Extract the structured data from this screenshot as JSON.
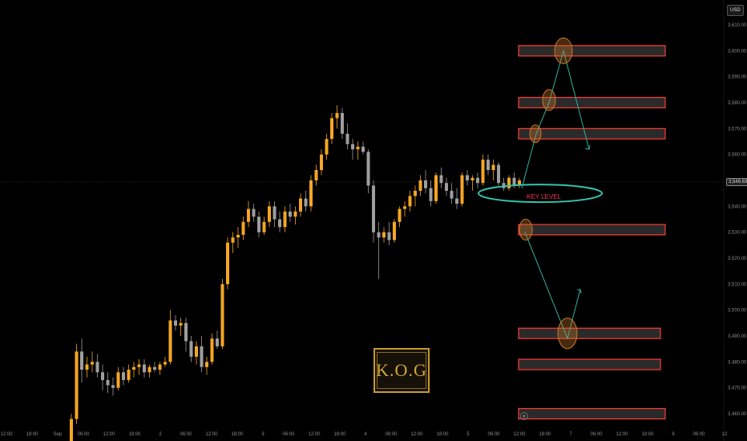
{
  "currency": "USD",
  "current_price": "3,549.83",
  "logo_text": "K.O.G",
  "key_level_label": "KEY LEVEL",
  "colors": {
    "background": "#000000",
    "bull_candle": "#f5a623",
    "bear_candle": "#9e9e9e",
    "zone_fill": "#2a2a2a",
    "zone_border": "#ff3b30",
    "arrow": "#2bb3a0",
    "circle": "#c8782a",
    "key_level_ellipse": "#34c3ad"
  },
  "chart_data": {
    "type": "candlestick",
    "title": "",
    "xlabel": "",
    "ylabel": "USD",
    "ylim": [
      3455,
      3615
    ],
    "grid": false,
    "x_ticks": [
      "12:00",
      "18:00",
      "Sep",
      "06:00",
      "12:00",
      "18:00",
      "2",
      "06:00",
      "12:00",
      "18:00",
      "3",
      "06:00",
      "12:00",
      "18:00",
      "4",
      "06:00",
      "12:00",
      "18:00",
      "5",
      "06:00",
      "12:00",
      "18:00",
      "7",
      "06:00",
      "12:00",
      "18:00",
      "9",
      "06:00",
      "12"
    ],
    "y_ticks": [
      "3,460.00",
      "3,470.00",
      "3,480.00",
      "3,490.00",
      "3,500.00",
      "3,510.00",
      "3,520.00",
      "3,530.00",
      "3,540.00",
      "3,550.00",
      "3,560.00",
      "3,570.00",
      "3,580.00",
      "3,590.00",
      "3,600.00",
      "3,610.00"
    ],
    "y_tick_values": [
      3460,
      3470,
      3480,
      3490,
      3500,
      3510,
      3520,
      3530,
      3540,
      3550,
      3560,
      3570,
      3580,
      3590,
      3600,
      3610
    ],
    "candles": [
      [
        3449,
        3460,
        3448,
        3458
      ],
      [
        3458,
        3487,
        3456,
        3484
      ],
      [
        3484,
        3489,
        3472,
        3477
      ],
      [
        3477,
        3482,
        3474,
        3479
      ],
      [
        3479,
        3484,
        3476,
        3480
      ],
      [
        3480,
        3483,
        3474,
        3476
      ],
      [
        3476,
        3479,
        3469,
        3473
      ],
      [
        3473,
        3476,
        3468,
        3471
      ],
      [
        3471,
        3474,
        3467,
        3470
      ],
      [
        3470,
        3478,
        3469,
        3476
      ],
      [
        3476,
        3478,
        3471,
        3473
      ],
      [
        3473,
        3479,
        3472,
        3477
      ],
      [
        3477,
        3480,
        3474,
        3478
      ],
      [
        3478,
        3481,
        3475,
        3479
      ],
      [
        3479,
        3481,
        3474,
        3476
      ],
      [
        3476,
        3479,
        3474,
        3478
      ],
      [
        3478,
        3480,
        3476,
        3477
      ],
      [
        3477,
        3480,
        3475,
        3479
      ],
      [
        3479,
        3482,
        3478,
        3480
      ],
      [
        3480,
        3500,
        3479,
        3496
      ],
      [
        3496,
        3498,
        3492,
        3494
      ],
      [
        3494,
        3497,
        3490,
        3495
      ],
      [
        3495,
        3497,
        3484,
        3488
      ],
      [
        3488,
        3490,
        3480,
        3482
      ],
      [
        3482,
        3488,
        3479,
        3486
      ],
      [
        3486,
        3490,
        3476,
        3478
      ],
      [
        3478,
        3482,
        3475,
        3480
      ],
      [
        3480,
        3491,
        3479,
        3489
      ],
      [
        3489,
        3492,
        3485,
        3486
      ],
      [
        3486,
        3512,
        3485,
        3510
      ],
      [
        3510,
        3528,
        3508,
        3526
      ],
      [
        3526,
        3530,
        3522,
        3528
      ],
      [
        3528,
        3532,
        3524,
        3529
      ],
      [
        3529,
        3536,
        3527,
        3534
      ],
      [
        3534,
        3542,
        3532,
        3539
      ],
      [
        3539,
        3541,
        3534,
        3536
      ],
      [
        3536,
        3538,
        3528,
        3530
      ],
      [
        3530,
        3536,
        3529,
        3534
      ],
      [
        3534,
        3542,
        3532,
        3540
      ],
      [
        3540,
        3542,
        3532,
        3535
      ],
      [
        3535,
        3538,
        3530,
        3532
      ],
      [
        3532,
        3540,
        3530,
        3538
      ],
      [
        3538,
        3541,
        3534,
        3536
      ],
      [
        3536,
        3540,
        3533,
        3538
      ],
      [
        3538,
        3545,
        3536,
        3543
      ],
      [
        3543,
        3546,
        3538,
        3540
      ],
      [
        3540,
        3552,
        3538,
        3550
      ],
      [
        3550,
        3556,
        3548,
        3554
      ],
      [
        3554,
        3562,
        3552,
        3560
      ],
      [
        3560,
        3568,
        3558,
        3566
      ],
      [
        3566,
        3576,
        3564,
        3574
      ],
      [
        3574,
        3579,
        3570,
        3576
      ],
      [
        3576,
        3578,
        3566,
        3568
      ],
      [
        3568,
        3572,
        3562,
        3564
      ],
      [
        3564,
        3566,
        3558,
        3562
      ],
      [
        3562,
        3565,
        3558,
        3563
      ],
      [
        3563,
        3565,
        3560,
        3561
      ],
      [
        3561,
        3562,
        3545,
        3548
      ],
      [
        3548,
        3550,
        3526,
        3530
      ],
      [
        3530,
        3534,
        3512,
        3528
      ],
      [
        3528,
        3532,
        3526,
        3530
      ],
      [
        3530,
        3534,
        3525,
        3527
      ],
      [
        3527,
        3535,
        3526,
        3534
      ],
      [
        3534,
        3540,
        3532,
        3539
      ],
      [
        3539,
        3542,
        3536,
        3540
      ],
      [
        3540,
        3546,
        3538,
        3544
      ],
      [
        3544,
        3548,
        3540,
        3546
      ],
      [
        3546,
        3552,
        3544,
        3550
      ],
      [
        3550,
        3554,
        3545,
        3547
      ],
      [
        3547,
        3550,
        3540,
        3542
      ],
      [
        3542,
        3553,
        3541,
        3552
      ],
      [
        3552,
        3555,
        3547,
        3549
      ],
      [
        3549,
        3551,
        3544,
        3546
      ],
      [
        3546,
        3549,
        3541,
        3543
      ],
      [
        3543,
        3547,
        3539,
        3541
      ],
      [
        3541,
        3553,
        3540,
        3552
      ],
      [
        3552,
        3554,
        3548,
        3550
      ],
      [
        3550,
        3552,
        3546,
        3551
      ],
      [
        3551,
        3553,
        3547,
        3549
      ],
      [
        3549,
        3560,
        3548,
        3558
      ],
      [
        3558,
        3560,
        3552,
        3554
      ],
      [
        3554,
        3558,
        3550,
        3556
      ],
      [
        3556,
        3557,
        3548,
        3549
      ],
      [
        3549,
        3551,
        3546,
        3547
      ],
      [
        3547,
        3552,
        3546,
        3551
      ],
      [
        3551,
        3553,
        3547,
        3548
      ],
      [
        3548,
        3551,
        3547,
        3550
      ]
    ],
    "zones": [
      {
        "top": 3602,
        "bottom": 3598
      },
      {
        "top": 3582,
        "bottom": 3578
      },
      {
        "top": 3570,
        "bottom": 3566
      },
      {
        "top": 3533,
        "bottom": 3529
      },
      {
        "top": 3493,
        "bottom": 3489
      },
      {
        "top": 3481,
        "bottom": 3477
      },
      {
        "top": 3462,
        "bottom": 3458
      }
    ],
    "key_level": 3545,
    "projection_up": [
      [
        3547,
        3570,
        3580,
        3600,
        3562
      ]
    ],
    "projection_down": [
      [
        3530,
        3489,
        3508
      ]
    ]
  }
}
